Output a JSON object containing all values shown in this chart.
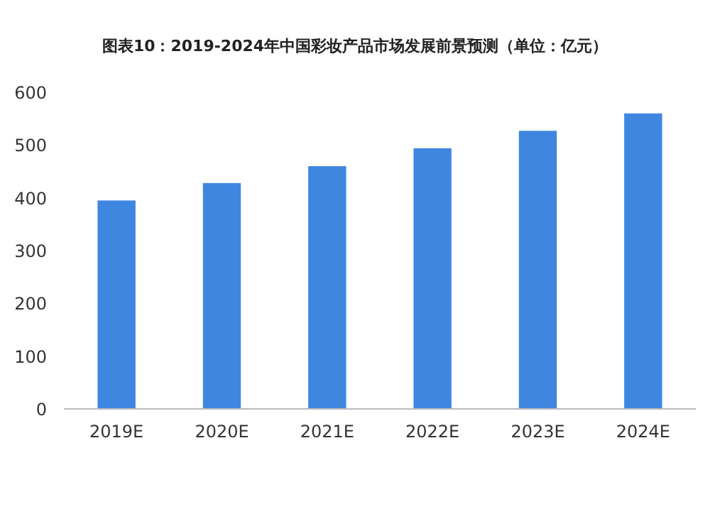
{
  "chart_data": {
    "type": "bar",
    "title": "图表10：2019-2024年中国彩妆产品市场发展前景预测（单位：亿元）",
    "categories": [
      "2019E",
      "2020E",
      "2021E",
      "2022E",
      "2023E",
      "2024E"
    ],
    "values": [
      395,
      428,
      460,
      494,
      527,
      560
    ],
    "color": "#3f86e0",
    "ylim": [
      0,
      600
    ],
    "yticks": [
      0,
      100,
      200,
      300,
      400,
      500,
      600
    ]
  }
}
